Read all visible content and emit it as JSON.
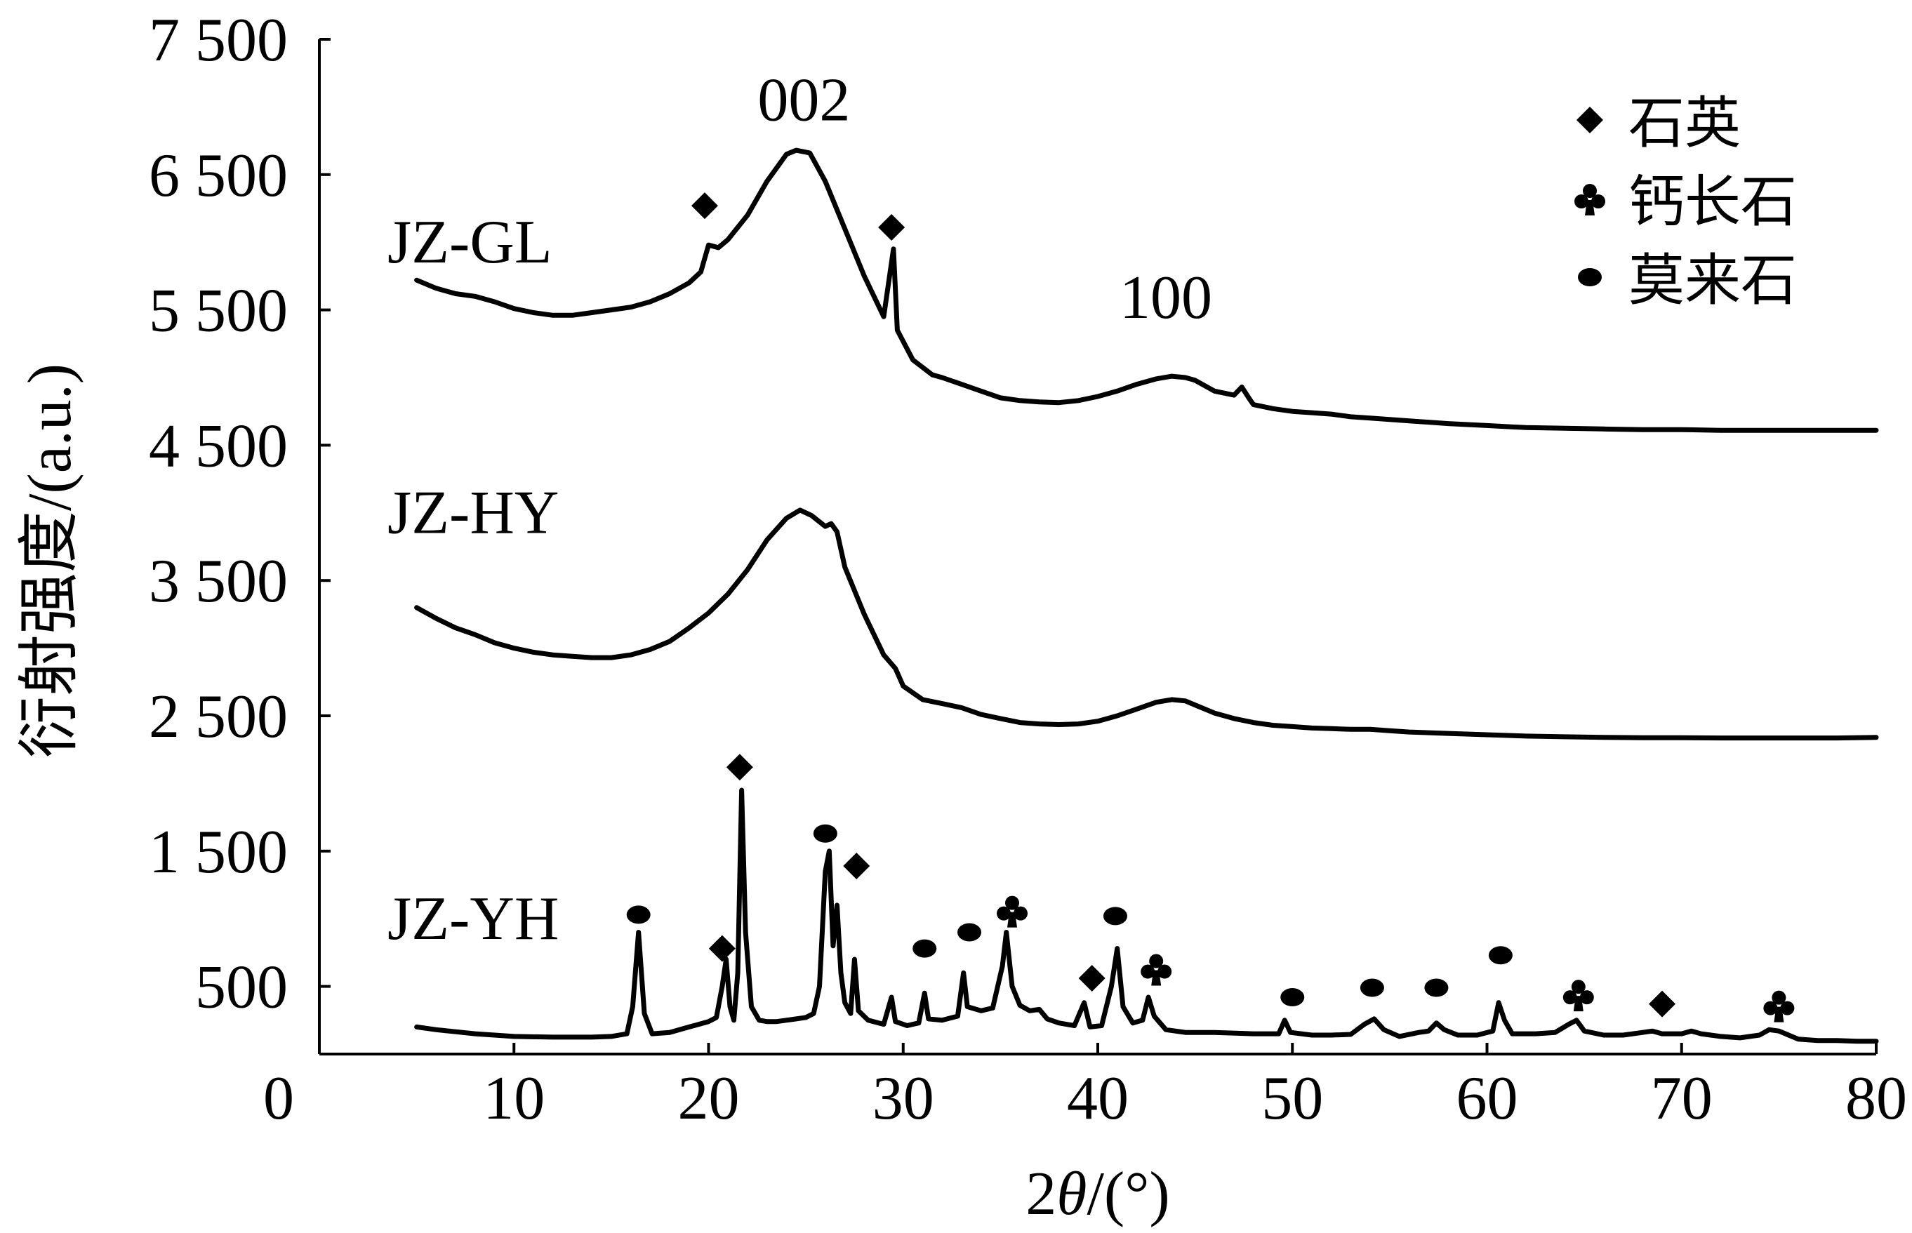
{
  "chart_data": {
    "type": "line",
    "xlabel_parts": [
      "2",
      "θ",
      "/(°)"
    ],
    "ylabel": "衍射强度/(a.u.)",
    "xlim": [
      0,
      80
    ],
    "ylim": [
      0,
      7500
    ],
    "x_ticks": [
      0,
      10,
      20,
      30,
      40,
      50,
      60,
      70,
      80
    ],
    "x_tick_labels": [
      "0",
      "10",
      "20",
      "30",
      "40",
      "50",
      "60",
      "70",
      "80"
    ],
    "y_ticks": [
      500,
      1500,
      2500,
      3500,
      4500,
      5500,
      6500,
      7500
    ],
    "y_tick_labels": [
      "500",
      "1 500",
      "2 500",
      "3 500",
      "4 500",
      "5 500",
      "6 500",
      "7 500"
    ],
    "grid": false,
    "legend_position": "top-right",
    "legend": [
      {
        "marker": "diamond",
        "label": "石英"
      },
      {
        "marker": "club",
        "label": "钙长石"
      },
      {
        "marker": "ellipse",
        "label": "莫来石"
      }
    ],
    "series": [
      {
        "name": "JZ-GL",
        "label_at": [
          3.5,
          5850
        ],
        "points": [
          [
            5,
            5720
          ],
          [
            6,
            5660
          ],
          [
            7,
            5620
          ],
          [
            8,
            5600
          ],
          [
            9,
            5560
          ],
          [
            10,
            5510
          ],
          [
            11,
            5480
          ],
          [
            12,
            5460
          ],
          [
            13,
            5460
          ],
          [
            14,
            5480
          ],
          [
            15,
            5500
          ],
          [
            16,
            5520
          ],
          [
            17,
            5560
          ],
          [
            18,
            5620
          ],
          [
            19,
            5700
          ],
          [
            19.6,
            5780
          ],
          [
            20,
            5980
          ],
          [
            20.5,
            5960
          ],
          [
            21,
            6020
          ],
          [
            22,
            6200
          ],
          [
            23,
            6450
          ],
          [
            24,
            6650
          ],
          [
            24.5,
            6680
          ],
          [
            25.2,
            6660
          ],
          [
            26,
            6450
          ],
          [
            27,
            6100
          ],
          [
            28,
            5750
          ],
          [
            29,
            5450
          ],
          [
            29.5,
            5950
          ],
          [
            29.7,
            5350
          ],
          [
            30.5,
            5130
          ],
          [
            31.5,
            5020
          ],
          [
            32,
            5000
          ],
          [
            33,
            4950
          ],
          [
            34,
            4900
          ],
          [
            35,
            4850
          ],
          [
            36,
            4830
          ],
          [
            37,
            4820
          ],
          [
            38,
            4815
          ],
          [
            39,
            4830
          ],
          [
            40,
            4860
          ],
          [
            41,
            4900
          ],
          [
            42,
            4950
          ],
          [
            43,
            4990
          ],
          [
            43.8,
            5010
          ],
          [
            44.5,
            5000
          ],
          [
            45,
            4980
          ],
          [
            46,
            4900
          ],
          [
            47,
            4870
          ],
          [
            47.4,
            4930
          ],
          [
            47.8,
            4840
          ],
          [
            48,
            4800
          ],
          [
            49,
            4770
          ],
          [
            50,
            4750
          ],
          [
            51,
            4740
          ],
          [
            52,
            4730
          ],
          [
            53,
            4710
          ],
          [
            54,
            4700
          ],
          [
            55,
            4690
          ],
          [
            56,
            4680
          ],
          [
            58,
            4660
          ],
          [
            60,
            4645
          ],
          [
            62,
            4630
          ],
          [
            64,
            4625
          ],
          [
            66,
            4620
          ],
          [
            68,
            4615
          ],
          [
            70,
            4615
          ],
          [
            72,
            4610
          ],
          [
            74,
            4610
          ],
          [
            76,
            4610
          ],
          [
            78,
            4610
          ],
          [
            80,
            4610
          ]
        ],
        "annotations": [
          {
            "text": "002",
            "x": 24.9,
            "y": 6900
          },
          {
            "text": "100",
            "x": 43.5,
            "y": 5440
          }
        ],
        "markers": [
          {
            "type": "diamond",
            "x": 19.8,
            "y": 6270
          },
          {
            "type": "diamond",
            "x": 29.4,
            "y": 6110
          }
        ]
      },
      {
        "name": "JZ-HY",
        "label_at": [
          3.5,
          3850
        ],
        "points": [
          [
            5,
            3300
          ],
          [
            6,
            3220
          ],
          [
            7,
            3150
          ],
          [
            8,
            3100
          ],
          [
            9,
            3040
          ],
          [
            10,
            3000
          ],
          [
            11,
            2970
          ],
          [
            12,
            2950
          ],
          [
            13,
            2940
          ],
          [
            14,
            2930
          ],
          [
            15,
            2930
          ],
          [
            16,
            2950
          ],
          [
            17,
            2990
          ],
          [
            18,
            3050
          ],
          [
            19,
            3150
          ],
          [
            20,
            3260
          ],
          [
            21,
            3400
          ],
          [
            22,
            3580
          ],
          [
            23,
            3800
          ],
          [
            24,
            3960
          ],
          [
            24.7,
            4020
          ],
          [
            25.3,
            3980
          ],
          [
            26,
            3900
          ],
          [
            26.3,
            3920
          ],
          [
            26.6,
            3860
          ],
          [
            27,
            3600
          ],
          [
            28,
            3250
          ],
          [
            29,
            2950
          ],
          [
            29.6,
            2850
          ],
          [
            30,
            2720
          ],
          [
            31,
            2620
          ],
          [
            32,
            2590
          ],
          [
            33,
            2560
          ],
          [
            34,
            2510
          ],
          [
            35,
            2480
          ],
          [
            36,
            2450
          ],
          [
            37,
            2440
          ],
          [
            38,
            2435
          ],
          [
            39,
            2440
          ],
          [
            40,
            2460
          ],
          [
            41,
            2500
          ],
          [
            42,
            2550
          ],
          [
            43,
            2600
          ],
          [
            43.8,
            2620
          ],
          [
            44.5,
            2610
          ],
          [
            45,
            2580
          ],
          [
            46,
            2520
          ],
          [
            47,
            2480
          ],
          [
            48,
            2450
          ],
          [
            49,
            2430
          ],
          [
            50,
            2420
          ],
          [
            51,
            2410
          ],
          [
            52,
            2405
          ],
          [
            53,
            2400
          ],
          [
            54,
            2400
          ],
          [
            55,
            2390
          ],
          [
            56,
            2380
          ],
          [
            58,
            2370
          ],
          [
            60,
            2360
          ],
          [
            62,
            2350
          ],
          [
            64,
            2345
          ],
          [
            66,
            2340
          ],
          [
            68,
            2338
          ],
          [
            70,
            2338
          ],
          [
            72,
            2336
          ],
          [
            74,
            2336
          ],
          [
            76,
            2336
          ],
          [
            78,
            2336
          ],
          [
            80,
            2340
          ]
        ],
        "annotations": [],
        "markers": []
      },
      {
        "name": "JZ-YH",
        "label_at": [
          3.5,
          850
        ],
        "points": [
          [
            5,
            200
          ],
          [
            6,
            180
          ],
          [
            7,
            165
          ],
          [
            8,
            150
          ],
          [
            9,
            140
          ],
          [
            10,
            130
          ],
          [
            12,
            125
          ],
          [
            14,
            125
          ],
          [
            15,
            130
          ],
          [
            15.8,
            150
          ],
          [
            16.1,
            350
          ],
          [
            16.4,
            900
          ],
          [
            16.7,
            300
          ],
          [
            17.1,
            150
          ],
          [
            18,
            160
          ],
          [
            19,
            200
          ],
          [
            19.5,
            220
          ],
          [
            20,
            240
          ],
          [
            20.4,
            270
          ],
          [
            20.7,
            500
          ],
          [
            20.9,
            700
          ],
          [
            21.1,
            350
          ],
          [
            21.3,
            250
          ],
          [
            21.5,
            600
          ],
          [
            21.7,
            1950
          ],
          [
            21.9,
            900
          ],
          [
            22.2,
            350
          ],
          [
            22.6,
            250
          ],
          [
            23,
            240
          ],
          [
            23.5,
            240
          ],
          [
            24,
            250
          ],
          [
            24.5,
            260
          ],
          [
            25,
            270
          ],
          [
            25.4,
            300
          ],
          [
            25.7,
            500
          ],
          [
            26,
            1350
          ],
          [
            26.2,
            1500
          ],
          [
            26.4,
            800
          ],
          [
            26.6,
            1100
          ],
          [
            26.8,
            600
          ],
          [
            27,
            380
          ],
          [
            27.3,
            300
          ],
          [
            27.5,
            700
          ],
          [
            27.7,
            320
          ],
          [
            28.2,
            250
          ],
          [
            29,
            220
          ],
          [
            29.4,
            420
          ],
          [
            29.6,
            240
          ],
          [
            30.2,
            210
          ],
          [
            30.8,
            230
          ],
          [
            31.1,
            450
          ],
          [
            31.3,
            260
          ],
          [
            32,
            250
          ],
          [
            32.8,
            280
          ],
          [
            33.1,
            600
          ],
          [
            33.3,
            350
          ],
          [
            34,
            320
          ],
          [
            34.6,
            340
          ],
          [
            35.1,
            650
          ],
          [
            35.3,
            900
          ],
          [
            35.6,
            500
          ],
          [
            36,
            360
          ],
          [
            36.5,
            320
          ],
          [
            37,
            330
          ],
          [
            37.4,
            260
          ],
          [
            38,
            230
          ],
          [
            38.8,
            210
          ],
          [
            39.3,
            380
          ],
          [
            39.6,
            200
          ],
          [
            40.2,
            210
          ],
          [
            40.7,
            500
          ],
          [
            41,
            780
          ],
          [
            41.3,
            350
          ],
          [
            41.8,
            230
          ],
          [
            42.3,
            250
          ],
          [
            42.6,
            420
          ],
          [
            42.9,
            280
          ],
          [
            43.5,
            180
          ],
          [
            44.5,
            160
          ],
          [
            46,
            160
          ],
          [
            48,
            150
          ],
          [
            49.3,
            150
          ],
          [
            49.6,
            250
          ],
          [
            49.9,
            160
          ],
          [
            51,
            140
          ],
          [
            52,
            140
          ],
          [
            53,
            145
          ],
          [
            53.7,
            220
          ],
          [
            54.2,
            260
          ],
          [
            54.7,
            180
          ],
          [
            55.5,
            130
          ],
          [
            56.5,
            160
          ],
          [
            57,
            170
          ],
          [
            57.4,
            230
          ],
          [
            57.8,
            180
          ],
          [
            58.5,
            140
          ],
          [
            59.5,
            140
          ],
          [
            60.3,
            170
          ],
          [
            60.6,
            380
          ],
          [
            60.9,
            250
          ],
          [
            61.3,
            150
          ],
          [
            62.5,
            150
          ],
          [
            63.5,
            160
          ],
          [
            64.2,
            220
          ],
          [
            64.6,
            250
          ],
          [
            65,
            170
          ],
          [
            66,
            140
          ],
          [
            67,
            140
          ],
          [
            68,
            160
          ],
          [
            68.5,
            170
          ],
          [
            69,
            150
          ],
          [
            70,
            150
          ],
          [
            70.5,
            170
          ],
          [
            71,
            150
          ],
          [
            72,
            130
          ],
          [
            73,
            120
          ],
          [
            74,
            140
          ],
          [
            74.5,
            180
          ],
          [
            75,
            170
          ],
          [
            75.5,
            140
          ],
          [
            76,
            110
          ],
          [
            77,
            100
          ],
          [
            78,
            100
          ],
          [
            79,
            95
          ],
          [
            80,
            95
          ]
        ],
        "annotations": [],
        "markers": [
          {
            "type": "ellipse",
            "x": 16.4,
            "y": 1030
          },
          {
            "type": "diamond",
            "x": 20.7,
            "y": 780
          },
          {
            "type": "diamond",
            "x": 21.6,
            "y": 2120
          },
          {
            "type": "ellipse",
            "x": 26.0,
            "y": 1630
          },
          {
            "type": "diamond",
            "x": 27.6,
            "y": 1390
          },
          {
            "type": "ellipse",
            "x": 31.1,
            "y": 780
          },
          {
            "type": "ellipse",
            "x": 33.4,
            "y": 900
          },
          {
            "type": "club",
            "x": 35.6,
            "y": 1060
          },
          {
            "type": "diamond",
            "x": 39.7,
            "y": 560
          },
          {
            "type": "ellipse",
            "x": 40.9,
            "y": 1020
          },
          {
            "type": "club",
            "x": 43.0,
            "y": 630
          },
          {
            "type": "ellipse",
            "x": 50.0,
            "y": 420
          },
          {
            "type": "ellipse",
            "x": 54.1,
            "y": 490
          },
          {
            "type": "ellipse",
            "x": 57.4,
            "y": 490
          },
          {
            "type": "ellipse",
            "x": 60.7,
            "y": 730
          },
          {
            "type": "club",
            "x": 64.7,
            "y": 440
          },
          {
            "type": "diamond",
            "x": 69.0,
            "y": 370
          },
          {
            "type": "club",
            "x": 75.0,
            "y": 360
          }
        ]
      }
    ]
  }
}
